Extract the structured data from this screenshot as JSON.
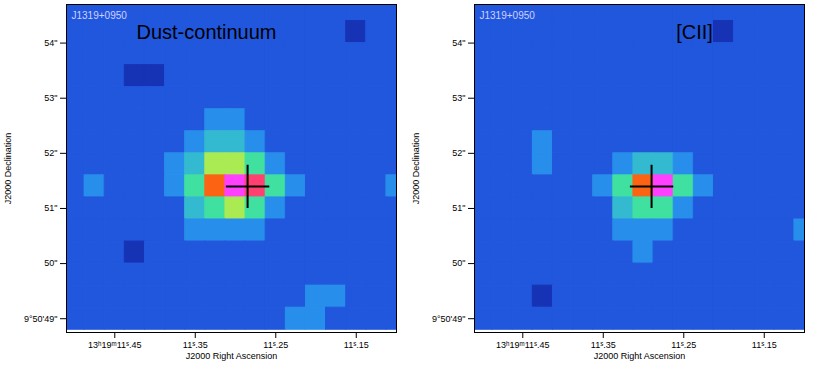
{
  "chart_data": [
    {
      "type": "heatmap",
      "title": "Dust-continuum",
      "annotations": [
        "J1319+0950"
      ],
      "x_label": "J2000 Right Ascension",
      "y_label": "J2000 Declination",
      "xlim": [
        11.51,
        11.1
      ],
      "ylim": [
        48.75,
        54.7
      ],
      "xticks": [
        {
          "value": 11.45,
          "label": "13ʰ19ᵐ11ˢ.45"
        },
        {
          "value": 11.35,
          "label": "11ˢ.35"
        },
        {
          "value": 11.25,
          "label": "11ˢ.25"
        },
        {
          "value": 11.15,
          "label": "11ˢ.15"
        }
      ],
      "yticks": [
        {
          "value": 49,
          "label": "9°50'49\""
        },
        {
          "value": 50,
          "label": "50\""
        },
        {
          "value": 51,
          "label": "51\""
        },
        {
          "value": 52,
          "label": "52\""
        },
        {
          "value": 53,
          "label": "53\""
        },
        {
          "value": 54,
          "label": "54\""
        }
      ],
      "x": [
        11.5,
        11.475,
        11.45,
        11.425,
        11.4,
        11.375,
        11.35,
        11.325,
        11.3,
        11.275,
        11.25,
        11.225,
        11.2,
        11.175,
        11.15,
        11.125,
        11.1
      ],
      "y": [
        54.6,
        54.2,
        53.8,
        53.4,
        53.0,
        52.6,
        52.2,
        51.8,
        51.4,
        51.0,
        50.6,
        50.2,
        49.8,
        49.4,
        49.0
      ],
      "zlim": [
        0,
        10
      ],
      "values": [
        [
          2,
          2,
          2,
          2,
          2,
          2,
          2,
          2,
          2,
          2,
          2,
          2,
          2,
          2,
          2,
          2,
          2
        ],
        [
          2,
          2,
          2,
          2,
          2,
          2,
          2,
          2,
          2,
          2,
          2,
          2,
          2,
          2,
          1,
          2,
          2
        ],
        [
          2,
          2,
          2,
          2,
          2,
          2,
          2,
          2,
          2,
          2,
          2,
          2,
          2,
          2,
          2,
          2,
          2
        ],
        [
          2,
          2,
          2,
          1,
          1,
          2,
          2,
          2,
          2,
          2,
          2,
          2,
          2,
          2,
          2,
          2,
          2
        ],
        [
          2,
          2,
          2,
          2,
          2,
          2,
          2,
          2,
          2,
          2,
          2,
          2,
          2,
          2,
          2,
          2,
          2
        ],
        [
          2,
          2,
          2,
          2,
          2,
          2,
          2,
          3,
          3,
          2,
          2,
          2,
          2,
          2,
          2,
          2,
          2
        ],
        [
          2,
          2,
          2,
          2,
          2,
          2,
          3,
          4,
          4,
          3,
          2,
          2,
          2,
          2,
          2,
          2,
          2
        ],
        [
          2,
          2,
          2,
          2,
          2,
          3,
          4,
          6,
          6,
          5,
          3,
          2,
          2,
          2,
          2,
          2,
          2
        ],
        [
          2,
          3,
          2,
          2,
          2,
          3,
          5,
          8,
          10,
          9,
          5,
          3,
          2,
          2,
          2,
          2,
          3
        ],
        [
          2,
          2,
          2,
          2,
          2,
          2,
          4,
          5,
          6,
          5,
          3,
          2,
          2,
          2,
          2,
          2,
          2
        ],
        [
          2,
          2,
          2,
          2,
          2,
          2,
          3,
          3,
          3,
          3,
          2,
          2,
          2,
          2,
          2,
          2,
          2
        ],
        [
          2,
          2,
          2,
          1,
          2,
          2,
          2,
          2,
          2,
          2,
          2,
          2,
          2,
          2,
          2,
          2,
          2
        ],
        [
          2,
          2,
          2,
          2,
          2,
          2,
          2,
          2,
          2,
          2,
          2,
          2,
          2,
          2,
          2,
          2,
          2
        ],
        [
          2,
          2,
          2,
          2,
          2,
          2,
          2,
          2,
          2,
          2,
          2,
          2,
          3,
          3,
          2,
          2,
          2
        ],
        [
          2,
          2,
          2,
          2,
          2,
          2,
          2,
          2,
          2,
          2,
          2,
          3,
          3,
          2,
          2,
          2,
          2
        ]
      ],
      "cross": {
        "x": 11.285,
        "y": 51.4
      },
      "marker": "plus"
    },
    {
      "type": "heatmap",
      "title": "[CII]",
      "annotations": [
        "J1319+0950"
      ],
      "x_label": "J2000 Right Ascension",
      "y_label": "J2000 Declination",
      "xlim": [
        11.51,
        11.1
      ],
      "ylim": [
        48.75,
        54.7
      ],
      "xticks": [
        {
          "value": 11.45,
          "label": "13ʰ19ᵐ11ˢ.45"
        },
        {
          "value": 11.35,
          "label": "11ˢ.35"
        },
        {
          "value": 11.25,
          "label": "11ˢ.25"
        },
        {
          "value": 11.15,
          "label": "11ˢ.15"
        }
      ],
      "yticks": [
        {
          "value": 49,
          "label": "9°50'49\""
        },
        {
          "value": 50,
          "label": "50\""
        },
        {
          "value": 51,
          "label": "51\""
        },
        {
          "value": 52,
          "label": "52\""
        },
        {
          "value": 53,
          "label": "53\""
        },
        {
          "value": 54,
          "label": "54\""
        }
      ],
      "x": [
        11.5,
        11.475,
        11.45,
        11.425,
        11.4,
        11.375,
        11.35,
        11.325,
        11.3,
        11.275,
        11.25,
        11.225,
        11.2,
        11.175,
        11.15,
        11.125,
        11.1
      ],
      "y": [
        54.6,
        54.2,
        53.8,
        53.4,
        53.0,
        52.6,
        52.2,
        51.8,
        51.4,
        51.0,
        50.6,
        50.2,
        49.8,
        49.4,
        49.0
      ],
      "zlim": [
        0,
        10
      ],
      "values": [
        [
          2,
          2,
          2,
          2,
          2,
          2,
          2,
          2,
          2,
          2,
          2,
          2,
          2,
          2,
          2,
          2,
          2
        ],
        [
          2,
          2,
          2,
          2,
          2,
          2,
          2,
          2,
          2,
          2,
          2,
          2,
          1,
          2,
          2,
          2,
          2
        ],
        [
          2,
          2,
          2,
          2,
          2,
          2,
          2,
          2,
          2,
          2,
          2,
          2,
          2,
          2,
          2,
          2,
          2
        ],
        [
          2,
          2,
          2,
          2,
          2,
          2,
          2,
          2,
          2,
          2,
          2,
          2,
          2,
          2,
          2,
          2,
          2
        ],
        [
          2,
          2,
          2,
          2,
          2,
          2,
          2,
          2,
          2,
          2,
          2,
          2,
          2,
          2,
          2,
          2,
          2
        ],
        [
          2,
          2,
          2,
          2,
          2,
          2,
          2,
          2,
          2,
          2,
          2,
          2,
          2,
          2,
          2,
          2,
          2
        ],
        [
          2,
          2,
          2,
          3,
          2,
          2,
          2,
          2,
          2,
          2,
          2,
          2,
          2,
          2,
          2,
          2,
          2
        ],
        [
          2,
          2,
          2,
          3,
          2,
          2,
          2,
          3,
          4,
          4,
          3,
          2,
          2,
          2,
          2,
          2,
          2
        ],
        [
          2,
          2,
          2,
          2,
          2,
          2,
          3,
          5,
          8,
          10,
          5,
          3,
          2,
          2,
          2,
          2,
          2
        ],
        [
          2,
          2,
          2,
          2,
          2,
          2,
          2,
          4,
          5,
          5,
          3,
          2,
          2,
          2,
          2,
          2,
          2
        ],
        [
          2,
          2,
          2,
          2,
          2,
          2,
          2,
          3,
          3,
          3,
          2,
          2,
          2,
          2,
          2,
          2,
          3
        ],
        [
          2,
          2,
          2,
          2,
          2,
          2,
          2,
          2,
          3,
          2,
          2,
          2,
          2,
          2,
          2,
          2,
          2
        ],
        [
          2,
          2,
          2,
          2,
          2,
          2,
          2,
          2,
          2,
          2,
          2,
          2,
          2,
          2,
          2,
          2,
          2
        ],
        [
          2,
          2,
          2,
          1,
          2,
          2,
          2,
          2,
          2,
          2,
          2,
          2,
          2,
          2,
          2,
          2,
          2
        ],
        [
          2,
          2,
          2,
          2,
          2,
          2,
          2,
          2,
          2,
          2,
          2,
          2,
          2,
          2,
          2,
          2,
          2
        ]
      ],
      "cross": {
        "x": 11.29,
        "y": 51.4
      },
      "marker": "plus"
    }
  ]
}
